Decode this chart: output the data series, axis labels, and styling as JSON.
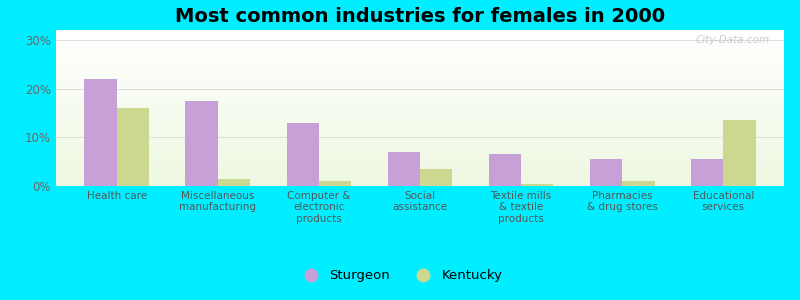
{
  "title": "Most common industries for females in 2000",
  "categories": [
    "Health care",
    "Miscellaneous\nmanufacturing",
    "Computer &\nelectronic\nproducts",
    "Social\nassistance",
    "Textile mills\n& textile\nproducts",
    "Pharmacies\n& drug stores",
    "Educational\nservices"
  ],
  "sturgeon": [
    22.0,
    17.5,
    13.0,
    7.0,
    6.5,
    5.5,
    5.5
  ],
  "kentucky": [
    16.0,
    1.5,
    1.0,
    3.5,
    0.5,
    1.0,
    13.5
  ],
  "sturgeon_color": "#c8a0d8",
  "kentucky_color": "#ccd890",
  "outer_bg": "#00eeff",
  "grid_color": "#dddddd",
  "yticks": [
    0,
    10,
    20,
    30
  ],
  "ylim": [
    0,
    32
  ],
  "title_fontsize": 14,
  "bar_width": 0.32,
  "watermark": "City-Data.com"
}
